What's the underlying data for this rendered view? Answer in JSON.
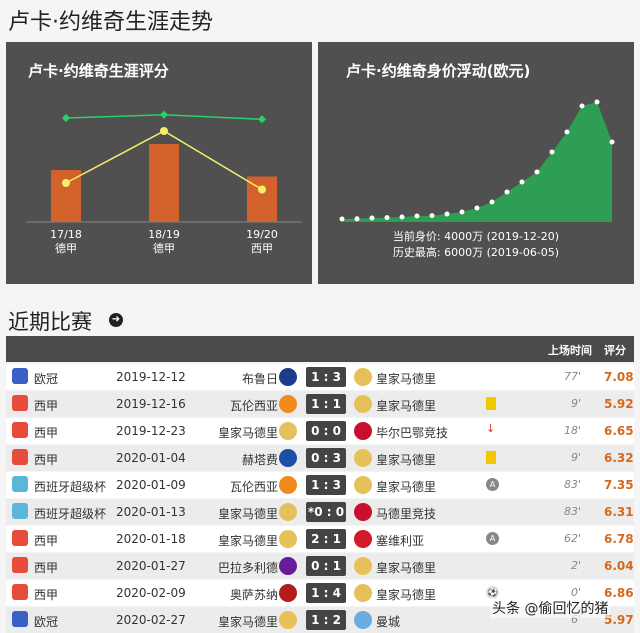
{
  "page_title": "卢卡·约维奇生涯走势",
  "rating_chart_title": "卢卡·约维奇生涯评分",
  "value_chart_title": "卢卡·约维奇身价浮动(欧元)",
  "market_value": {
    "current_label": "当前身价: 4000万 (2019-12-20)",
    "peak_label": "历史最高: 6000万 (2019-06-05)"
  },
  "chart_data": [
    {
      "type": "bar",
      "title": "卢卡·约维奇生涯评分",
      "categories": [
        "17/18\n德甲",
        "18/19\n德甲",
        "19/20\n西甲"
      ],
      "season_labels": [
        "17/18",
        "18/19",
        "19/20"
      ],
      "league_labels": [
        "德甲",
        "德甲",
        "西甲"
      ],
      "series": [
        {
          "kind": "bar",
          "color": "#d2622a",
          "values": [
            6.8,
            7.2,
            6.7
          ]
        },
        {
          "kind": "line",
          "color": "#f5f06a",
          "values": [
            6.6,
            7.4,
            6.5
          ]
        },
        {
          "kind": "line",
          "color": "#29d36a",
          "values": [
            7.6,
            7.65,
            7.58
          ]
        }
      ],
      "ylim": [
        6.0,
        8.0
      ]
    },
    {
      "type": "area",
      "title": "卢卡·约维奇身价浮动(欧元)",
      "values": [
        150,
        160,
        200,
        220,
        250,
        300,
        320,
        400,
        500,
        700,
        1000,
        1500,
        2000,
        2500,
        3500,
        4500,
        5800,
        6000,
        4000
      ],
      "color": "#2e9e54",
      "ylim": [
        0,
        6500
      ]
    }
  ],
  "recent_title": "近期比赛",
  "table": {
    "col_minutes": "上场时间",
    "col_rating": "评分",
    "rows": [
      {
        "comp": "欧冠",
        "comp_color": "#3b5fc4",
        "date": "2019-12-12",
        "home": "布鲁日",
        "home_color": "#1e3a8a",
        "score": "1 : 3",
        "away": "皇家马德里",
        "away_color": "#e6c15a",
        "event": "",
        "minutes": "77'",
        "rating": "7.08"
      },
      {
        "comp": "西甲",
        "comp_color": "#e84a3c",
        "date": "2019-12-16",
        "home": "瓦伦西亚",
        "home_color": "#f08a1c",
        "score": "1 : 1",
        "away": "皇家马德里",
        "away_color": "#e6c15a",
        "event": "yc",
        "minutes": "9'",
        "rating": "5.92"
      },
      {
        "comp": "西甲",
        "comp_color": "#e84a3c",
        "date": "2019-12-23",
        "home": "皇家马德里",
        "home_color": "#e6c15a",
        "score": "0 : 0",
        "away": "毕尔巴鄂竞技",
        "away_color": "#c8102e",
        "event": "sub",
        "minutes": "18'",
        "rating": "6.65"
      },
      {
        "comp": "西甲",
        "comp_color": "#e84a3c",
        "date": "2020-01-04",
        "home": "赫塔费",
        "home_color": "#1c4fa8",
        "score": "0 : 3",
        "away": "皇家马德里",
        "away_color": "#e6c15a",
        "event": "yc",
        "minutes": "9'",
        "rating": "6.32"
      },
      {
        "comp": "西班牙超级杯",
        "comp_color": "#5bb7d9",
        "date": "2020-01-09",
        "home": "瓦伦西亚",
        "home_color": "#f08a1c",
        "score": "1 : 3",
        "away": "皇家马德里",
        "away_color": "#e6c15a",
        "event": "A",
        "minutes": "83'",
        "rating": "7.35"
      },
      {
        "comp": "西班牙超级杯",
        "comp_color": "#5bb7d9",
        "date": "2020-01-13",
        "home": "皇家马德里",
        "home_color": "#e6c15a",
        "score": "*0 : 0",
        "away": "马德里竞技",
        "away_color": "#c8102e",
        "event": "",
        "minutes": "83'",
        "rating": "6.31"
      },
      {
        "comp": "西甲",
        "comp_color": "#e84a3c",
        "date": "2020-01-18",
        "home": "皇家马德里",
        "home_color": "#e6c15a",
        "score": "2 : 1",
        "away": "塞维利亚",
        "away_color": "#d11a2a",
        "event": "A",
        "minutes": "62'",
        "rating": "6.78"
      },
      {
        "comp": "西甲",
        "comp_color": "#e84a3c",
        "date": "2020-01-27",
        "home": "巴拉多利德",
        "home_color": "#6a1b9a",
        "score": "0 : 1",
        "away": "皇家马德里",
        "away_color": "#e6c15a",
        "event": "",
        "minutes": "2'",
        "rating": "6.04"
      },
      {
        "comp": "西甲",
        "comp_color": "#e84a3c",
        "date": "2020-02-09",
        "home": "奥萨苏纳",
        "home_color": "#b71c1c",
        "score": "1 : 4",
        "away": "皇家马德里",
        "away_color": "#e6c15a",
        "event": "ball",
        "minutes": "0'",
        "rating": "6.86"
      },
      {
        "comp": "欧冠",
        "comp_color": "#3b5fc4",
        "date": "2020-02-27",
        "home": "皇家马德里",
        "home_color": "#e6c15a",
        "score": "1 : 2",
        "away": "曼城",
        "away_color": "#6cabdd",
        "event": "",
        "minutes": "6'",
        "rating": "5.97"
      }
    ]
  },
  "watermark": "头条 @偷回忆的猪"
}
